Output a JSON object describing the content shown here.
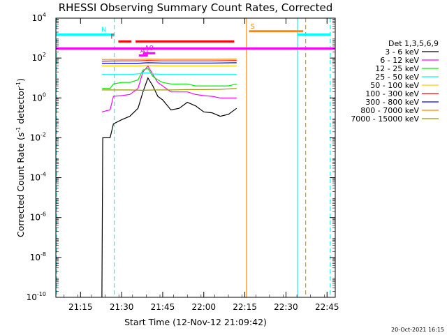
{
  "chart_data": {
    "type": "line",
    "title": "RHESSI Observing Summary Count Rates, Corrected",
    "xlabel": "Start Time (12-Nov-12 21:09:42)",
    "ylabel": "Corrected Count Rate (s⁻¹ detector⁻¹)",
    "ylabel_parts": {
      "a": "Corrected Count Rate (s",
      "sup1": "-1",
      "b": " detector",
      "sup2": "-1",
      "c": ")"
    },
    "y_scale": "log",
    "ylim": [
      1e-10,
      10000.0
    ],
    "xlim_minutes": [
      21.1,
      22.8
    ],
    "x_ticks": [
      {
        "t": 21.25,
        "label": "21:15"
      },
      {
        "t": 21.5,
        "label": "21:30"
      },
      {
        "t": 21.75,
        "label": "21:45"
      },
      {
        "t": 22.0,
        "label": "22:00"
      },
      {
        "t": 22.25,
        "label": "22:15"
      },
      {
        "t": 22.5,
        "label": "22:30"
      },
      {
        "t": 22.75,
        "label": "22:45"
      }
    ],
    "y_ticks": [
      {
        "exp": 4,
        "label": "10",
        "sup": "4"
      },
      {
        "exp": 2,
        "label": "10",
        "sup": "2"
      },
      {
        "exp": 0,
        "label": "10",
        "sup": "0"
      },
      {
        "exp": -2,
        "label": "10",
        "sup": "-2"
      },
      {
        "exp": -4,
        "label": "10",
        "sup": "-4"
      },
      {
        "exp": -6,
        "label": "10",
        "sup": "-6"
      },
      {
        "exp": -8,
        "label": "10",
        "sup": "-8"
      },
      {
        "exp": -10,
        "label": "10",
        "sup": "-10"
      }
    ],
    "legend_title": "Det 1,3,5,6,9",
    "legend_placement": "right",
    "series": [
      {
        "name": "3 - 6 keV",
        "color": "#000000",
        "points": [
          [
            21.38,
            1e-10
          ],
          [
            21.385,
            0.01
          ],
          [
            21.43,
            0.01
          ],
          [
            21.45,
            0.05
          ],
          [
            21.5,
            0.08
          ],
          [
            21.55,
            0.12
          ],
          [
            21.6,
            0.3
          ],
          [
            21.63,
            2
          ],
          [
            21.66,
            10
          ],
          [
            21.69,
            4
          ],
          [
            21.72,
            1.2
          ],
          [
            21.75,
            0.8
          ],
          [
            21.8,
            0.25
          ],
          [
            21.85,
            0.3
          ],
          [
            21.9,
            0.6
          ],
          [
            21.95,
            0.4
          ],
          [
            22.0,
            0.2
          ],
          [
            22.05,
            0.18
          ],
          [
            22.1,
            0.12
          ],
          [
            22.15,
            0.15
          ],
          [
            22.2,
            0.3
          ]
        ]
      },
      {
        "name": "6 - 12 keV",
        "color": "#ff00ff",
        "points": [
          [
            21.38,
            0.2
          ],
          [
            21.43,
            0.25
          ],
          [
            21.45,
            1.2
          ],
          [
            21.5,
            1.3
          ],
          [
            21.55,
            1.5
          ],
          [
            21.6,
            3
          ],
          [
            21.63,
            20
          ],
          [
            21.66,
            40
          ],
          [
            21.69,
            15
          ],
          [
            21.72,
            6
          ],
          [
            21.75,
            4
          ],
          [
            21.8,
            2
          ],
          [
            21.85,
            2
          ],
          [
            21.9,
            2
          ],
          [
            21.95,
            1.5
          ],
          [
            22.0,
            1.3
          ],
          [
            22.05,
            1.2
          ],
          [
            22.1,
            1
          ],
          [
            22.15,
            1
          ],
          [
            22.2,
            1
          ]
        ]
      },
      {
        "name": "12 - 25 keV",
        "color": "#00ee00",
        "points": [
          [
            21.38,
            3
          ],
          [
            21.43,
            3
          ],
          [
            21.45,
            5
          ],
          [
            21.5,
            6
          ],
          [
            21.55,
            6
          ],
          [
            21.6,
            8
          ],
          [
            21.63,
            25
          ],
          [
            21.66,
            30
          ],
          [
            21.69,
            12
          ],
          [
            21.72,
            8
          ],
          [
            21.75,
            6
          ],
          [
            21.8,
            5
          ],
          [
            21.85,
            5
          ],
          [
            21.9,
            5
          ],
          [
            21.95,
            4
          ],
          [
            22.0,
            4
          ],
          [
            22.05,
            4
          ],
          [
            22.1,
            4
          ],
          [
            22.15,
            4
          ],
          [
            22.2,
            5
          ]
        ]
      },
      {
        "name": "25 - 50 keV",
        "color": "#00ffff",
        "points": [
          [
            21.38,
            15
          ],
          [
            21.43,
            15
          ],
          [
            21.5,
            15
          ],
          [
            21.55,
            15
          ],
          [
            21.6,
            16
          ],
          [
            21.63,
            18
          ],
          [
            21.66,
            18
          ],
          [
            21.69,
            16
          ],
          [
            21.75,
            15
          ],
          [
            21.85,
            15
          ],
          [
            21.95,
            15
          ],
          [
            22.05,
            15
          ],
          [
            22.15,
            15
          ],
          [
            22.2,
            15
          ]
        ]
      },
      {
        "name": "50 - 100 keV",
        "color": "#ffcc00",
        "points": [
          [
            21.38,
            40
          ],
          [
            21.5,
            40
          ],
          [
            21.6,
            40
          ],
          [
            21.66,
            42
          ],
          [
            21.75,
            40
          ],
          [
            21.9,
            40
          ],
          [
            22.05,
            40
          ],
          [
            22.2,
            40
          ]
        ]
      },
      {
        "name": "100 - 300 keV",
        "color": "#ff0000",
        "points": [
          [
            21.38,
            70
          ],
          [
            21.5,
            72
          ],
          [
            21.6,
            72
          ],
          [
            21.66,
            75
          ],
          [
            21.75,
            72
          ],
          [
            21.9,
            72
          ],
          [
            22.05,
            72
          ],
          [
            22.2,
            75
          ]
        ]
      },
      {
        "name": "300 - 800 keV",
        "color": "#0000ff",
        "points": [
          [
            21.38,
            55
          ],
          [
            21.5,
            55
          ],
          [
            21.6,
            55
          ],
          [
            21.66,
            58
          ],
          [
            21.75,
            56
          ],
          [
            21.9,
            56
          ],
          [
            22.05,
            56
          ],
          [
            22.2,
            58
          ]
        ]
      },
      {
        "name": "800 - 7000 keV",
        "color": "#ff8800",
        "points": [
          [
            21.38,
            85
          ],
          [
            21.5,
            85
          ],
          [
            21.6,
            85
          ],
          [
            21.66,
            88
          ],
          [
            21.75,
            86
          ],
          [
            21.9,
            86
          ],
          [
            22.05,
            86
          ],
          [
            22.2,
            88
          ]
        ]
      },
      {
        "name": "7000 - 15000 keV",
        "color": "#999900",
        "points": [
          [
            21.38,
            2.5
          ],
          [
            21.45,
            2.5
          ],
          [
            21.55,
            2.5
          ],
          [
            21.63,
            2.4
          ],
          [
            21.7,
            2.5
          ],
          [
            21.8,
            2.5
          ],
          [
            21.9,
            2.6
          ],
          [
            22.0,
            2.6
          ],
          [
            22.1,
            2.7
          ],
          [
            22.2,
            3
          ]
        ]
      }
    ],
    "vertical_lines": [
      {
        "t": 21.105,
        "color": "#00ffff",
        "style": "dashed"
      },
      {
        "t": 21.455,
        "color": "#00ffff",
        "style": "dashed"
      },
      {
        "t": 22.26,
        "color": "#ff8800",
        "style": "solid"
      },
      {
        "t": 22.57,
        "color": "#00ffff",
        "style": "solid"
      },
      {
        "t": 22.62,
        "color": "#ff8800",
        "style": "dashed"
      },
      {
        "t": 22.77,
        "color": "#00ffff",
        "style": "dashed"
      }
    ],
    "horizontal_bars": [
      {
        "label": "",
        "color": "#ff00ff",
        "t0": 21.1,
        "t1": 22.8,
        "y": 300
      },
      {
        "label": "N",
        "color": "#00ffff",
        "t0": 21.1,
        "t1": 21.455,
        "y": 1500
      },
      {
        "label": "",
        "color": "#00ffff",
        "t0": 22.57,
        "t1": 22.77,
        "y": 1500
      },
      {
        "label": "S",
        "color": "#ff8800",
        "t0": 22.275,
        "t1": 22.605,
        "y": 2200
      },
      {
        "label": "F",
        "color": "#ff0000",
        "t0": 21.48,
        "t1": 21.56,
        "y": 680
      },
      {
        "label": "",
        "color": "#ff0000",
        "t0": 21.585,
        "t1": 22.185,
        "y": 680
      },
      {
        "label": "A1",
        "color": "#ff00ff",
        "t0": 21.605,
        "t1": 21.66,
        "y": 135
      },
      {
        "label": "A0",
        "color": "#ff00ff",
        "t0": 21.63,
        "t1": 21.705,
        "y": 175
      }
    ]
  },
  "footer_date": "20-Oct-2021 16:15"
}
